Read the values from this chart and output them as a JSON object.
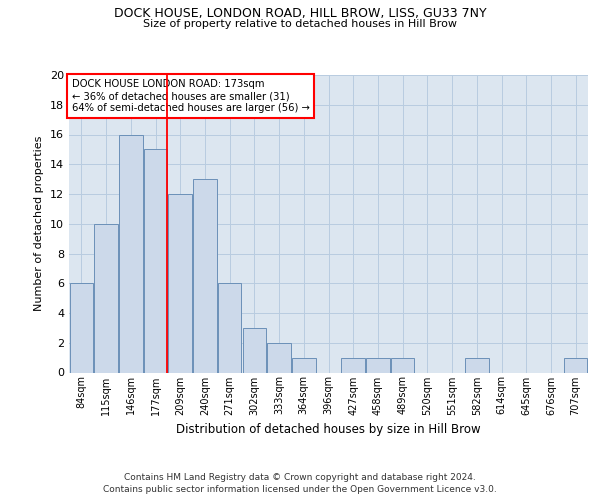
{
  "title": "DOCK HOUSE, LONDON ROAD, HILL BROW, LISS, GU33 7NY",
  "subtitle": "Size of property relative to detached houses in Hill Brow",
  "xlabel": "Distribution of detached houses by size in Hill Brow",
  "ylabel": "Number of detached properties",
  "categories": [
    "84sqm",
    "115sqm",
    "146sqm",
    "177sqm",
    "209sqm",
    "240sqm",
    "271sqm",
    "302sqm",
    "333sqm",
    "364sqm",
    "396sqm",
    "427sqm",
    "458sqm",
    "489sqm",
    "520sqm",
    "551sqm",
    "582sqm",
    "614sqm",
    "645sqm",
    "676sqm",
    "707sqm"
  ],
  "values": [
    6,
    10,
    16,
    15,
    12,
    13,
    6,
    3,
    2,
    1,
    0,
    1,
    1,
    1,
    0,
    0,
    1,
    0,
    0,
    0,
    1
  ],
  "bar_color": "#ccd9ea",
  "bar_edge_color": "#6b90b8",
  "grid_color": "#b8cce0",
  "background_color": "#dce6f0",
  "annotation_text": "DOCK HOUSE LONDON ROAD: 173sqm\n← 36% of detached houses are smaller (31)\n64% of semi-detached houses are larger (56) →",
  "annotation_box_color": "white",
  "annotation_box_edge_color": "red",
  "vline_index": 3,
  "vline_color": "red",
  "ylim": [
    0,
    20
  ],
  "yticks": [
    0,
    2,
    4,
    6,
    8,
    10,
    12,
    14,
    16,
    18,
    20
  ],
  "footer_line1": "Contains HM Land Registry data © Crown copyright and database right 2024.",
  "footer_line2": "Contains public sector information licensed under the Open Government Licence v3.0."
}
